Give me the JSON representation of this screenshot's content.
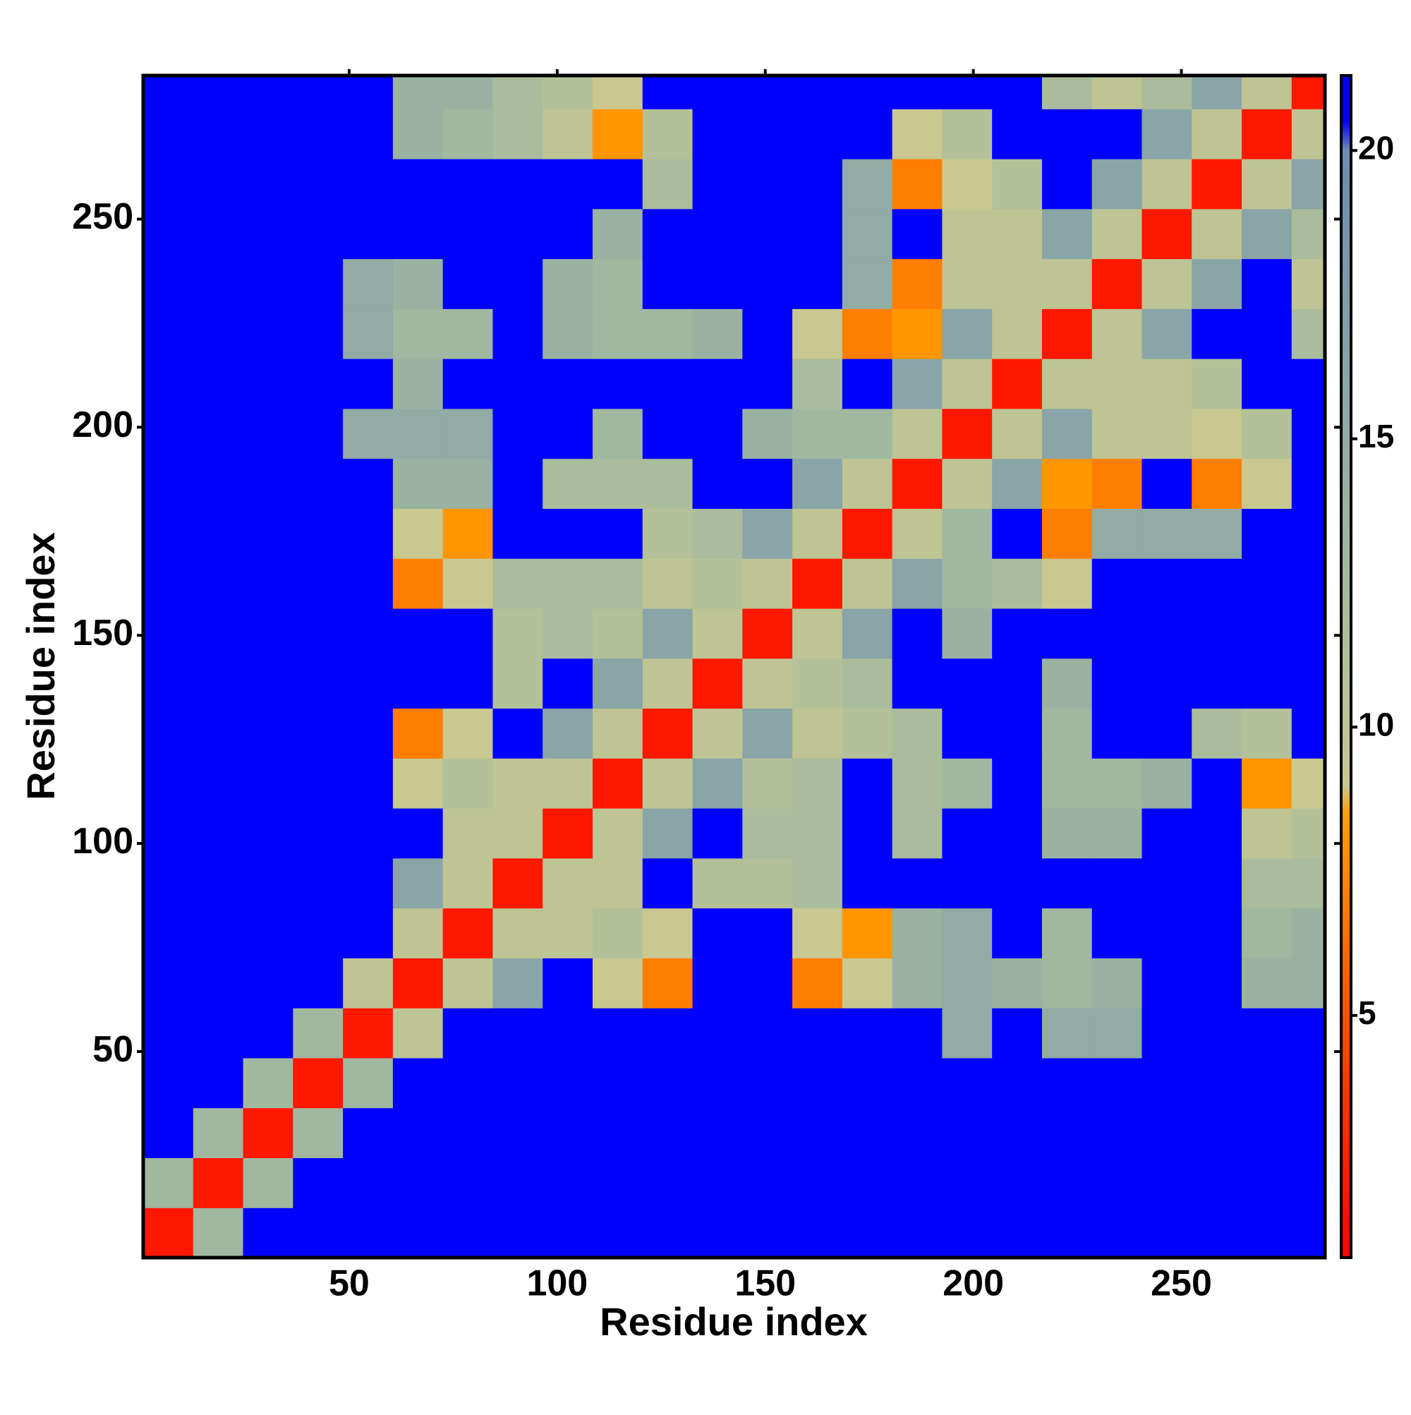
{
  "chart_data": {
    "type": "heatmap",
    "xlabel": "Residue index",
    "ylabel": "Residue index",
    "x": [
      6.5,
      18.5,
      30.5,
      42.5,
      54.5,
      66.5,
      78.5,
      90.5,
      102.5,
      114.5,
      126.5,
      138.5,
      150.5,
      162.5,
      174.5,
      186.5,
      198.5,
      210.5,
      222.5,
      234.5,
      246.5,
      258.5,
      270.5,
      282.5
    ],
    "y": [
      6.5,
      18.5,
      30.5,
      42.5,
      54.5,
      66.5,
      78.5,
      90.5,
      102.5,
      114.5,
      126.5,
      138.5,
      150.5,
      162.5,
      174.5,
      186.5,
      198.5,
      210.5,
      222.5,
      234.5,
      246.5,
      258.5,
      270.5,
      282.5
    ],
    "values": [
      [
        2,
        13,
        21,
        21,
        21,
        21,
        21,
        21,
        21,
        21,
        21,
        21,
        21,
        21,
        21,
        21,
        21,
        21,
        21,
        21,
        21,
        21,
        21,
        21
      ],
      [
        13,
        2,
        13,
        21,
        21,
        21,
        21,
        21,
        21,
        21,
        21,
        21,
        21,
        21,
        21,
        21,
        21,
        21,
        21,
        21,
        21,
        21,
        21,
        21
      ],
      [
        21,
        13,
        2,
        13,
        21,
        21,
        21,
        21,
        21,
        21,
        21,
        21,
        21,
        21,
        21,
        21,
        21,
        21,
        21,
        21,
        21,
        21,
        21,
        21
      ],
      [
        21,
        21,
        13,
        2,
        13,
        21,
        21,
        21,
        21,
        21,
        21,
        21,
        21,
        21,
        21,
        21,
        21,
        21,
        21,
        21,
        21,
        21,
        21,
        21
      ],
      [
        21,
        21,
        21,
        13,
        2,
        10,
        21,
        21,
        21,
        21,
        21,
        21,
        21,
        21,
        21,
        21,
        15,
        21,
        15,
        15,
        21,
        21,
        21,
        21
      ],
      [
        21,
        21,
        21,
        21,
        10,
        2,
        10,
        16,
        21,
        9,
        7,
        21,
        21,
        7,
        9,
        14,
        15,
        14,
        13,
        14,
        21,
        21,
        14,
        14
      ],
      [
        21,
        21,
        21,
        21,
        21,
        10,
        2,
        10,
        10,
        11,
        9,
        21,
        21,
        9,
        8,
        14,
        15,
        21,
        13,
        21,
        21,
        21,
        13,
        14
      ],
      [
        21,
        21,
        21,
        21,
        21,
        16,
        10,
        2,
        10,
        10,
        21,
        11,
        11,
        12,
        21,
        21,
        21,
        21,
        21,
        21,
        21,
        21,
        12,
        12
      ],
      [
        21,
        21,
        21,
        21,
        21,
        21,
        10,
        10,
        2,
        10,
        16,
        21,
        12,
        12,
        21,
        12,
        21,
        21,
        14,
        14,
        21,
        21,
        10,
        11
      ],
      [
        21,
        21,
        21,
        21,
        21,
        9,
        11,
        10,
        10,
        2,
        10,
        16,
        11,
        12,
        21,
        12,
        13,
        21,
        13,
        13,
        14,
        21,
        8,
        9
      ],
      [
        21,
        21,
        21,
        21,
        21,
        7,
        9,
        21,
        16,
        10,
        2,
        10,
        16,
        10,
        11,
        12,
        21,
        21,
        13,
        21,
        21,
        12,
        11,
        21
      ],
      [
        21,
        21,
        21,
        21,
        21,
        21,
        21,
        11,
        21,
        16,
        10,
        2,
        10,
        11,
        12,
        21,
        21,
        21,
        14,
        21,
        21,
        21,
        21,
        21
      ],
      [
        21,
        21,
        21,
        21,
        21,
        21,
        21,
        11,
        12,
        11,
        16,
        10,
        2,
        10,
        16,
        21,
        14,
        21,
        21,
        21,
        21,
        21,
        21,
        21
      ],
      [
        21,
        21,
        21,
        21,
        21,
        7,
        9,
        12,
        12,
        12,
        10,
        11,
        10,
        2,
        10,
        16,
        13,
        12,
        9,
        21,
        21,
        21,
        21,
        21
      ],
      [
        21,
        21,
        21,
        21,
        21,
        9,
        8,
        21,
        21,
        21,
        11,
        12,
        16,
        10,
        2,
        10,
        13,
        21,
        7,
        15,
        15,
        15,
        21,
        21
      ],
      [
        21,
        21,
        21,
        21,
        21,
        14,
        14,
        21,
        12,
        12,
        12,
        21,
        21,
        16,
        10,
        2,
        10,
        16,
        8,
        7,
        21,
        7,
        9,
        21
      ],
      [
        21,
        21,
        21,
        21,
        15,
        15,
        15,
        21,
        21,
        13,
        21,
        21,
        14,
        13,
        13,
        10,
        2,
        10,
        16,
        10,
        10,
        9,
        11,
        21
      ],
      [
        21,
        21,
        21,
        21,
        21,
        14,
        21,
        21,
        21,
        21,
        21,
        21,
        21,
        12,
        21,
        16,
        10,
        2,
        10,
        10,
        10,
        11,
        21,
        21
      ],
      [
        21,
        21,
        21,
        21,
        15,
        13,
        13,
        21,
        14,
        13,
        13,
        14,
        21,
        9,
        7,
        8,
        16,
        10,
        2,
        10,
        16,
        21,
        21,
        12
      ],
      [
        21,
        21,
        21,
        21,
        15,
        14,
        21,
        21,
        14,
        13,
        21,
        21,
        21,
        21,
        15,
        7,
        10,
        10,
        10,
        2,
        10,
        16,
        21,
        10
      ],
      [
        21,
        21,
        21,
        21,
        21,
        21,
        21,
        21,
        21,
        14,
        21,
        21,
        21,
        21,
        15,
        21,
        10,
        10,
        16,
        10,
        2,
        10,
        16,
        12
      ],
      [
        21,
        21,
        21,
        21,
        21,
        21,
        21,
        21,
        21,
        21,
        12,
        21,
        21,
        21,
        15,
        7,
        9,
        11,
        21,
        16,
        10,
        2,
        10,
        16
      ],
      [
        21,
        21,
        21,
        21,
        21,
        14,
        13,
        12,
        10,
        8,
        11,
        21,
        21,
        21,
        21,
        9,
        11,
        21,
        21,
        21,
        16,
        10,
        2,
        10
      ],
      [
        21,
        21,
        21,
        21,
        21,
        14,
        14,
        12,
        11,
        9,
        21,
        21,
        21,
        21,
        21,
        21,
        21,
        21,
        12,
        10,
        12,
        16,
        10,
        2
      ]
    ],
    "xlim": [
      0.5,
      284.5
    ],
    "ylim": [
      0.5,
      284.5
    ],
    "xticks": [
      50,
      100,
      150,
      200,
      250
    ],
    "yticks": [
      50,
      100,
      150,
      200,
      250
    ],
    "zlim": [
      0.8,
      21.3
    ],
    "zticks": [
      5,
      10,
      15,
      20
    ],
    "colorscale": [
      [
        0.8,
        "#ff0000"
      ],
      [
        5,
        "#ff5000"
      ],
      [
        8.5,
        "#ffa000"
      ],
      [
        9,
        "#c8c890"
      ],
      [
        13,
        "#a0b8a0"
      ],
      [
        20,
        "#6c8cb0"
      ],
      [
        20.5,
        "#0000ff"
      ],
      [
        21.3,
        "#0000ff"
      ]
    ]
  }
}
